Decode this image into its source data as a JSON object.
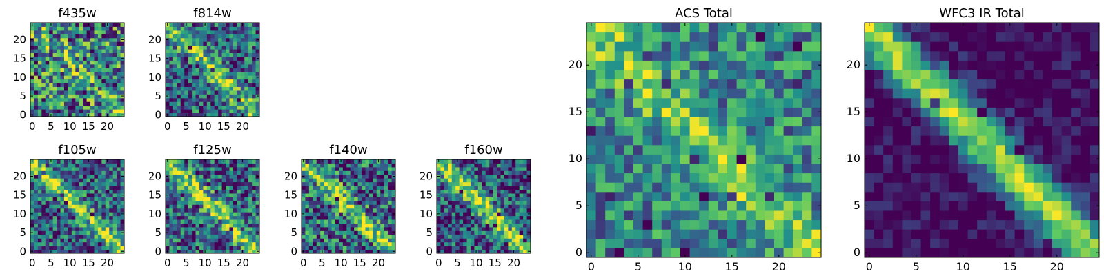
{
  "colormap": [
    "#440154",
    "#3b528b",
    "#21918c",
    "#5ec962",
    "#fde725"
  ],
  "chart_data": [
    {
      "type": "heatmap",
      "title": "f435w",
      "pattern": "diagonal",
      "strength": 0.2,
      "noise": 0.95,
      "seed": 11,
      "grid_size": 25,
      "xticks": [
        0,
        5,
        10,
        15,
        20
      ],
      "yticks": [
        0,
        5,
        10,
        15,
        20
      ],
      "xlim": [
        -0.5,
        24.5
      ],
      "ylim": [
        -0.5,
        24.5
      ]
    },
    {
      "type": "heatmap",
      "title": "f814w",
      "pattern": "diagonal",
      "strength": 0.45,
      "noise": 0.75,
      "seed": 23,
      "grid_size": 25,
      "xticks": [
        0,
        5,
        10,
        15,
        20
      ],
      "yticks": [
        0,
        5,
        10,
        15,
        20
      ],
      "xlim": [
        -0.5,
        24.5
      ],
      "ylim": [
        -0.5,
        24.5
      ]
    },
    {
      "type": "heatmap",
      "title": "f105w",
      "pattern": "diagonal",
      "strength": 0.5,
      "noise": 0.7,
      "seed": 37,
      "grid_size": 25,
      "xticks": [
        0,
        5,
        10,
        15,
        20
      ],
      "yticks": [
        0,
        5,
        10,
        15,
        20
      ],
      "xlim": [
        -0.5,
        24.5
      ],
      "ylim": [
        -0.5,
        24.5
      ]
    },
    {
      "type": "heatmap",
      "title": "f125w",
      "pattern": "diagonal",
      "strength": 0.5,
      "noise": 0.75,
      "seed": 41,
      "grid_size": 25,
      "xticks": [
        0,
        5,
        10,
        15,
        20
      ],
      "yticks": [
        0,
        5,
        10,
        15,
        20
      ],
      "xlim": [
        -0.5,
        24.5
      ],
      "ylim": [
        -0.5,
        24.5
      ]
    },
    {
      "type": "heatmap",
      "title": "f140w",
      "pattern": "diagonal",
      "strength": 0.45,
      "noise": 0.85,
      "seed": 53,
      "grid_size": 25,
      "xticks": [
        0,
        5,
        10,
        15,
        20
      ],
      "yticks": [
        0,
        5,
        10,
        15,
        20
      ],
      "xlim": [
        -0.5,
        24.5
      ],
      "ylim": [
        -0.5,
        24.5
      ]
    },
    {
      "type": "heatmap",
      "title": "f160w",
      "pattern": "diagonal",
      "strength": 0.6,
      "noise": 0.7,
      "seed": 67,
      "grid_size": 25,
      "xticks": [
        0,
        5,
        10,
        15,
        20
      ],
      "yticks": [
        0,
        5,
        10,
        15,
        20
      ],
      "xlim": [
        -0.5,
        24.5
      ],
      "ylim": [
        -0.5,
        24.5
      ]
    },
    {
      "type": "heatmap",
      "title": "ACS Total",
      "pattern": "diagonal",
      "strength": 0.35,
      "noise": 0.6,
      "base": 0.58,
      "seed": 79,
      "grid_size": 25,
      "xticks": [
        0,
        5,
        10,
        15,
        20
      ],
      "yticks": [
        0,
        5,
        10,
        15,
        20
      ],
      "xlim": [
        -0.5,
        24.5
      ],
      "ylim": [
        -0.5,
        24.5
      ]
    },
    {
      "type": "heatmap",
      "title": "WFC3 IR Total",
      "pattern": "diagonal",
      "strength": 0.85,
      "noise": 0.35,
      "base": 0.3,
      "seed": 97,
      "grid_size": 25,
      "xticks": [
        0,
        5,
        10,
        15,
        20
      ],
      "yticks": [
        0,
        5,
        10,
        15,
        20
      ],
      "xlim": [
        -0.5,
        24.5
      ],
      "ylim": [
        -0.5,
        24.5
      ]
    }
  ]
}
